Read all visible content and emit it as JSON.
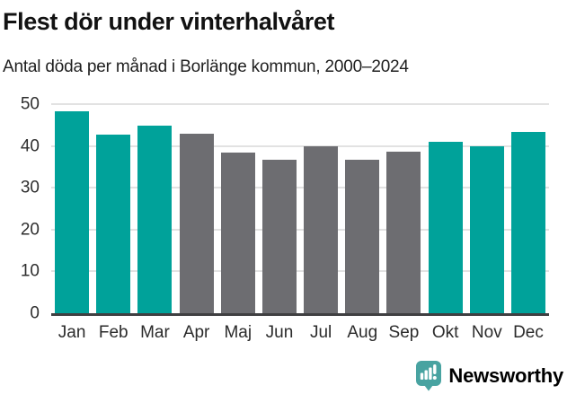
{
  "header": {
    "title": "Flest dör under vinterhalvåret",
    "subtitle": "Antal döda per månad i Borlänge kommun, 2000–2024"
  },
  "chart_data": {
    "type": "bar",
    "title": "Flest dör under vinterhalvåret",
    "subtitle": "Antal döda per månad i Borlänge kommun, 2000–2024",
    "categories": [
      "Jan",
      "Feb",
      "Mar",
      "Apr",
      "Maj",
      "Jun",
      "Jul",
      "Aug",
      "Sep",
      "Okt",
      "Nov",
      "Dec"
    ],
    "values": [
      48.2,
      42.7,
      44.8,
      43.0,
      38.4,
      36.7,
      39.9,
      36.8,
      38.7,
      41.0,
      39.9,
      43.4
    ],
    "bar_color_keys": [
      "teal",
      "teal",
      "teal",
      "gray",
      "gray",
      "gray",
      "gray",
      "gray",
      "gray",
      "teal",
      "teal",
      "teal"
    ],
    "colors": {
      "teal": "#00a29a",
      "gray": "#6d6d71"
    },
    "xlabel": "",
    "ylabel": "",
    "ylim": [
      0,
      50
    ],
    "yticks": [
      0,
      10,
      20,
      30,
      40,
      50
    ],
    "grid": true,
    "legend": false,
    "gridline_color": "#e2e2e2",
    "axis_line_color": "#3f3f41"
  },
  "footer": {
    "brand": "Newsworthy",
    "brand_color": "#3b9693",
    "icon_color": "#48a3a1",
    "icon": "newsworthy-speech-bubble-bar-chart-icon"
  }
}
